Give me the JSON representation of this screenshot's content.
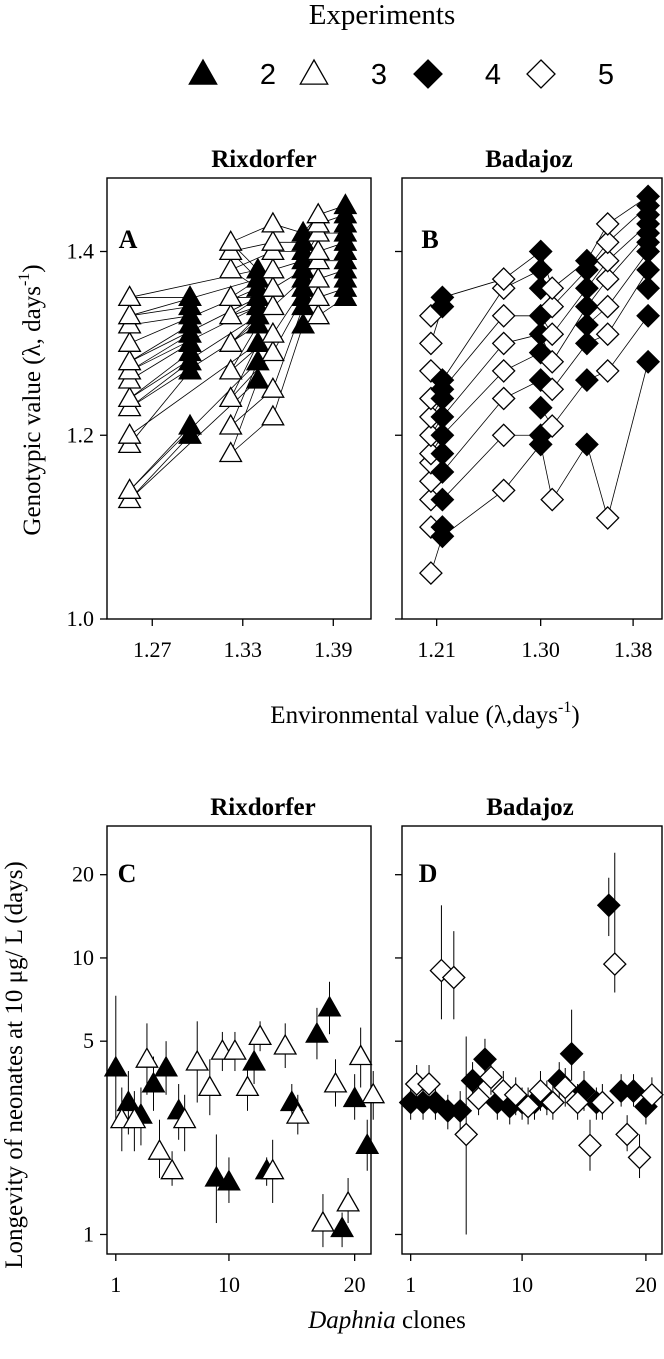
{
  "legend": {
    "title": "Experiments",
    "items": [
      {
        "label": "2",
        "marker": "triangle",
        "filled": true
      },
      {
        "label": "3",
        "marker": "triangle",
        "filled": false
      },
      {
        "label": "4",
        "marker": "diamond",
        "filled": true
      },
      {
        "label": "5",
        "marker": "diamond",
        "filled": false
      }
    ]
  },
  "labels": {
    "top_ylabel_main": "Genotypic value (λ, days",
    "top_ylabel_sup": "-1",
    "top_ylabel_end": ")",
    "top_xlabel_main": "Environmental value (λ,days",
    "top_xlabel_sup": "-1",
    "top_xlabel_end": ")",
    "bottom_ylabel": "Longevity of neonates at 10 μg/ L (days)",
    "bottom_xlabel_italic": "Daphnia",
    "bottom_xlabel_rest": " clones"
  },
  "chart_data": [
    {
      "id": "A",
      "type": "scatter",
      "title": "Rixdorfer",
      "panel_label": "A",
      "ylim": [
        1.0,
        1.48
      ],
      "yticks": [
        "1.0",
        "1.2",
        "1.4"
      ],
      "ytick_values": [
        1.0,
        1.2,
        1.4
      ],
      "xlim": [
        1.24,
        1.415
      ],
      "xticks": [
        "1.27",
        "1.33",
        "1.39"
      ],
      "xtick_values": [
        1.27,
        1.33,
        1.39
      ],
      "series": [
        {
          "experiment": "2",
          "marker": "triangle",
          "filled": true,
          "x": 1.295,
          "values": [
            1.2,
            1.21,
            1.27,
            1.28,
            1.29,
            1.3,
            1.31,
            1.32,
            1.33,
            1.34,
            1.35
          ]
        },
        {
          "experiment": "3",
          "marker": "triangle",
          "filled": false,
          "x": 1.255,
          "values": [
            1.13,
            1.14,
            1.19,
            1.2,
            1.23,
            1.24,
            1.26,
            1.27,
            1.28,
            1.3,
            1.32,
            1.33,
            1.35
          ]
        },
        {
          "experiment": "2",
          "marker": "triangle",
          "filled": true,
          "x": 1.34,
          "values": [
            1.26,
            1.28,
            1.3,
            1.32,
            1.33,
            1.34,
            1.35,
            1.36,
            1.37,
            1.38
          ]
        },
        {
          "experiment": "3",
          "marker": "triangle",
          "filled": false,
          "x": 1.322,
          "values": [
            1.18,
            1.21,
            1.24,
            1.27,
            1.3,
            1.33,
            1.35,
            1.38,
            1.4,
            1.41
          ]
        },
        {
          "experiment": "3",
          "marker": "triangle",
          "filled": false,
          "x": 1.35,
          "values": [
            1.22,
            1.25,
            1.29,
            1.31,
            1.34,
            1.36,
            1.38,
            1.4,
            1.41,
            1.43
          ]
        },
        {
          "experiment": "2",
          "marker": "triangle",
          "filled": true,
          "x": 1.37,
          "values": [
            1.32,
            1.34,
            1.35,
            1.36,
            1.37,
            1.38,
            1.39,
            1.4,
            1.41,
            1.42
          ]
        },
        {
          "experiment": "3",
          "marker": "triangle",
          "filled": false,
          "x": 1.38,
          "values": [
            1.33,
            1.35,
            1.37,
            1.39,
            1.4,
            1.42,
            1.43,
            1.44
          ]
        },
        {
          "experiment": "2",
          "marker": "triangle",
          "filled": true,
          "x": 1.398,
          "values": [
            1.35,
            1.36,
            1.37,
            1.38,
            1.39,
            1.4,
            1.41,
            1.42,
            1.43,
            1.44,
            1.45
          ]
        }
      ]
    },
    {
      "id": "B",
      "type": "scatter",
      "title": "Badajoz",
      "panel_label": "B",
      "ylim": [
        1.0,
        1.48
      ],
      "yticks": [],
      "ytick_values": [
        1.0,
        1.2,
        1.4
      ],
      "xlim": [
        1.18,
        1.405
      ],
      "xticks": [
        "1.21",
        "1.30",
        "1.38"
      ],
      "xtick_values": [
        1.21,
        1.3,
        1.38
      ],
      "series": [
        {
          "experiment": "5",
          "marker": "diamond",
          "filled": false,
          "x": 1.205,
          "values": [
            1.05,
            1.1,
            1.13,
            1.15,
            1.17,
            1.18,
            1.2,
            1.22,
            1.24,
            1.27,
            1.3,
            1.33
          ]
        },
        {
          "experiment": "4",
          "marker": "diamond",
          "filled": true,
          "x": 1.215,
          "values": [
            1.09,
            1.1,
            1.13,
            1.16,
            1.18,
            1.2,
            1.22,
            1.24,
            1.25,
            1.26,
            1.34,
            1.35
          ]
        },
        {
          "experiment": "5",
          "marker": "diamond",
          "filled": false,
          "x": 1.268,
          "values": [
            1.14,
            1.2,
            1.24,
            1.27,
            1.3,
            1.33,
            1.36,
            1.37
          ]
        },
        {
          "experiment": "4",
          "marker": "diamond",
          "filled": true,
          "x": 1.3,
          "values": [
            1.19,
            1.2,
            1.23,
            1.26,
            1.29,
            1.31,
            1.33,
            1.36,
            1.38,
            1.4
          ]
        },
        {
          "experiment": "5",
          "marker": "diamond",
          "filled": false,
          "x": 1.31,
          "values": [
            1.13,
            1.21,
            1.25,
            1.28,
            1.31,
            1.34,
            1.36
          ]
        },
        {
          "experiment": "4",
          "marker": "diamond",
          "filled": true,
          "x": 1.34,
          "values": [
            1.19,
            1.26,
            1.3,
            1.32,
            1.34,
            1.36,
            1.38,
            1.39
          ]
        },
        {
          "experiment": "5",
          "marker": "diamond",
          "filled": false,
          "x": 1.358,
          "values": [
            1.11,
            1.27,
            1.31,
            1.34,
            1.37,
            1.39,
            1.41,
            1.43
          ]
        },
        {
          "experiment": "4",
          "marker": "diamond",
          "filled": true,
          "x": 1.393,
          "values": [
            1.28,
            1.33,
            1.36,
            1.38,
            1.4,
            1.41,
            1.42,
            1.43,
            1.44,
            1.45,
            1.46
          ]
        }
      ]
    },
    {
      "id": "C",
      "type": "scatter",
      "title": "Rixdorfer",
      "panel_label": "C",
      "yscale": "log",
      "ylim": [
        0.85,
        30
      ],
      "yticks": [
        "1",
        "5",
        "10",
        "20"
      ],
      "ytick_values": [
        1,
        5,
        10,
        20
      ],
      "xlim": [
        0.3,
        21.3
      ],
      "xticks": [
        "1",
        "10",
        "20"
      ],
      "xtick_values": [
        1,
        10,
        20
      ],
      "series": [
        {
          "experiment": "2",
          "marker": "triangle",
          "filled": true,
          "name": "2",
          "points": [
            [
              1,
              4.0,
              2.5,
              7.3
            ],
            [
              2,
              3.0,
              2.3,
              3.9
            ],
            [
              3,
              2.7,
              2.1,
              3.4
            ],
            [
              4,
              3.5,
              2.8,
              4.4
            ],
            [
              5,
              4.0,
              3.2,
              5.0
            ],
            [
              6,
              2.8,
              2.2,
              3.5
            ],
            [
              9,
              1.6,
              1.1,
              2.3
            ],
            [
              10,
              1.55,
              1.3,
              1.9
            ],
            [
              12,
              4.2,
              3.5,
              5.1
            ],
            [
              13,
              1.7,
              1.5,
              1.9
            ],
            [
              15,
              3.0,
              2.6,
              3.5
            ],
            [
              17,
              5.3,
              4.3,
              6.6
            ],
            [
              18,
              6.6,
              5.3,
              8.2
            ],
            [
              19,
              1.05,
              0.9,
              1.2
            ],
            [
              20,
              3.1,
              2.6,
              3.8
            ],
            [
              21,
              2.1,
              1.7,
              2.6
            ]
          ]
        },
        {
          "experiment": "3",
          "marker": "triangle",
          "filled": false,
          "name": "3",
          "points": [
            [
              1,
              2.6,
              2.0,
              3.4
            ],
            [
              2,
              2.6,
              2.0,
              3.3
            ],
            [
              3,
              4.3,
              3.2,
              5.8
            ],
            [
              4,
              2.0,
              1.6,
              2.6
            ],
            [
              5,
              1.7,
              1.5,
              2.0
            ],
            [
              6,
              2.6,
              2.0,
              3.2
            ],
            [
              7,
              4.2,
              3.0,
              5.9
            ],
            [
              8,
              3.4,
              2.7,
              4.3
            ],
            [
              9,
              4.6,
              3.9,
              5.4
            ],
            [
              10,
              4.6,
              3.9,
              5.4
            ],
            [
              11,
              3.4,
              2.8,
              4.1
            ],
            [
              12,
              5.2,
              4.6,
              5.9
            ],
            [
              13,
              1.7,
              1.3,
              2.2
            ],
            [
              14,
              4.8,
              4.0,
              5.8
            ],
            [
              15,
              2.7,
              2.3,
              3.2
            ],
            [
              17,
              1.1,
              0.9,
              1.4
            ],
            [
              18,
              3.5,
              2.9,
              4.3
            ],
            [
              19,
              1.3,
              1.1,
              1.6
            ],
            [
              20,
              4.4,
              3.4,
              5.6
            ],
            [
              21,
              3.2,
              2.6,
              3.9
            ]
          ]
        }
      ]
    },
    {
      "id": "D",
      "type": "scatter",
      "title": "Badajoz",
      "panel_label": "D",
      "yscale": "log",
      "ylim": [
        0.85,
        30
      ],
      "yticks": [],
      "ytick_values": [
        1,
        5,
        10,
        20
      ],
      "xlim": [
        0.3,
        21.3
      ],
      "xticks": [
        "1",
        "10",
        "20"
      ],
      "xtick_values": [
        1,
        10,
        20
      ],
      "series": [
        {
          "experiment": "4",
          "marker": "diamond",
          "filled": true,
          "name": "4",
          "points": [
            [
              1,
              3.0,
              2.6,
              3.4
            ],
            [
              2,
              3.0,
              2.6,
              3.4
            ],
            [
              3,
              3.0,
              2.6,
              3.4
            ],
            [
              4,
              2.8,
              2.4,
              3.2
            ],
            [
              5,
              2.8,
              2.4,
              3.3
            ],
            [
              6,
              3.6,
              3.1,
              4.2
            ],
            [
              7,
              4.3,
              3.6,
              5.1
            ],
            [
              8,
              3.0,
              2.6,
              3.4
            ],
            [
              9,
              2.9,
              2.5,
              3.4
            ],
            [
              10,
              3.0,
              2.6,
              3.4
            ],
            [
              11,
              3.0,
              2.6,
              3.4
            ],
            [
              12,
              3.1,
              2.7,
              3.6
            ],
            [
              13,
              3.6,
              3.1,
              4.2
            ],
            [
              14,
              4.5,
              3.6,
              6.5
            ],
            [
              15,
              3.3,
              2.8,
              3.9
            ],
            [
              16,
              3.0,
              2.6,
              3.4
            ],
            [
              17,
              15.5,
              12.0,
              19.5
            ],
            [
              18,
              3.3,
              2.9,
              3.8
            ],
            [
              19,
              3.3,
              2.9,
              3.8
            ],
            [
              20,
              2.9,
              2.5,
              3.3
            ]
          ]
        },
        {
          "experiment": "5",
          "marker": "diamond",
          "filled": false,
          "name": "5",
          "points": [
            [
              1,
              3.5,
              3.0,
              4.1
            ],
            [
              2,
              3.5,
              3.0,
              4.1
            ],
            [
              3,
              9.0,
              6.0,
              15.5
            ],
            [
              4,
              8.5,
              6.0,
              12.5
            ],
            [
              5,
              2.3,
              1.0,
              5.2
            ],
            [
              6,
              3.1,
              2.7,
              3.6
            ],
            [
              7,
              3.7,
              3.2,
              4.3
            ],
            [
              8,
              3.3,
              2.8,
              3.9
            ],
            [
              9,
              3.2,
              2.7,
              3.7
            ],
            [
              10,
              2.9,
              2.5,
              3.4
            ],
            [
              11,
              3.3,
              2.8,
              3.9
            ],
            [
              12,
              3.0,
              2.6,
              3.5
            ],
            [
              13,
              3.4,
              2.9,
              4.0
            ],
            [
              14,
              3.0,
              2.6,
              3.5
            ],
            [
              15,
              2.1,
              1.7,
              2.6
            ],
            [
              16,
              3.0,
              2.6,
              3.5
            ],
            [
              17,
              9.5,
              7.5,
              24.0
            ],
            [
              18,
              2.3,
              2.0,
              2.7
            ],
            [
              19,
              1.9,
              1.6,
              2.3
            ],
            [
              20,
              3.2,
              2.8,
              3.7
            ]
          ]
        }
      ]
    }
  ]
}
